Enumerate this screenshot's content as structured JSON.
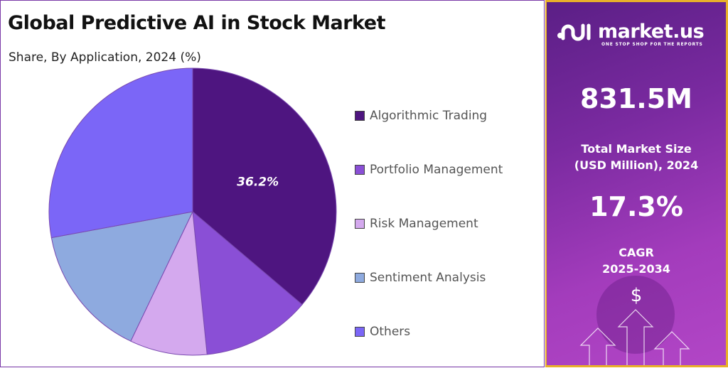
{
  "title": "Global Predictive AI in Stock Market",
  "subtitle": "Share, By Application, 2024 (%)",
  "chart_data": {
    "type": "pie",
    "categories": [
      "Algorithmic Trading",
      "Portfolio Management",
      "Risk Management",
      "Sentiment Analysis",
      "Others"
    ],
    "values": [
      36.2,
      12.2,
      8.7,
      15.0,
      27.9
    ],
    "colors": [
      "#4e1580",
      "#8a4fd6",
      "#d4a9ee",
      "#8eaadf",
      "#7b66f7"
    ],
    "data_labels": [
      "36.2%",
      "",
      "",
      "",
      ""
    ],
    "start": "top",
    "direction": "clockwise",
    "legend": "right"
  },
  "sidebar": {
    "brand": "market.us",
    "tagline": "ONE STOP SHOP FOR THE REPORTS",
    "market_size": "831.5M",
    "market_size_label_1": "Total Market Size",
    "market_size_label_2": "(USD Million), 2024",
    "cagr": "17.3%",
    "cagr_label_1": "CAGR",
    "cagr_label_2": "2025-2034",
    "dollar": "$"
  }
}
